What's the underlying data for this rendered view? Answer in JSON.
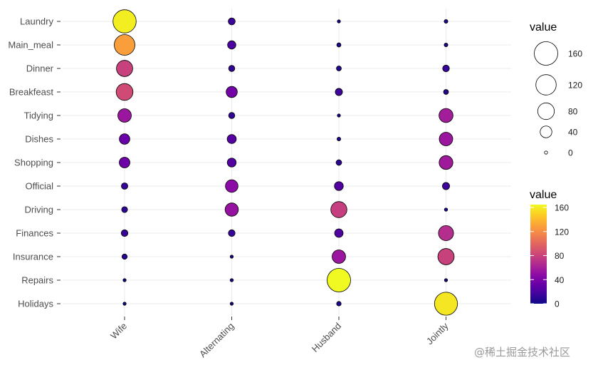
{
  "chart_data": {
    "type": "scatter",
    "subtype": "balloon",
    "x_categories": [
      "Wife",
      "Alternating",
      "Husband",
      "Jointly"
    ],
    "y_categories": [
      "Laundry",
      "Main_meal",
      "Dinner",
      "Breakfeast",
      "Tidying",
      "Dishes",
      "Shopping",
      "Official",
      "Driving",
      "Finances",
      "Insurance",
      "Repairs",
      "Holidays"
    ],
    "values": [
      [
        156,
        14,
        2,
        4
      ],
      [
        124,
        20,
        5,
        4
      ],
      [
        77,
        11,
        7,
        13
      ],
      [
        82,
        36,
        15,
        7
      ],
      [
        53,
        11,
        1,
        57
      ],
      [
        32,
        24,
        4,
        53
      ],
      [
        33,
        23,
        9,
        55
      ],
      [
        12,
        46,
        23,
        15
      ],
      [
        10,
        51,
        75,
        3
      ],
      [
        13,
        13,
        21,
        66
      ],
      [
        8,
        1,
        53,
        77
      ],
      [
        0,
        3,
        160,
        2
      ],
      [
        0,
        1,
        6,
        153
      ]
    ],
    "size_legend": {
      "title": "value",
      "breaks": [
        160,
        120,
        80,
        40,
        0
      ],
      "labels": [
        "160",
        "120",
        "80",
        "40",
        "0"
      ]
    },
    "color_legend": {
      "title": "value",
      "breaks": [
        160,
        120,
        80,
        40,
        0
      ],
      "labels": [
        "160",
        "120",
        "80",
        "40",
        "0"
      ],
      "colormap": "plasma",
      "min": 0,
      "max": 160
    },
    "grid": true,
    "title": "",
    "xlabel": "",
    "ylabel": ""
  },
  "watermark": "@稀土掘金技术社区"
}
